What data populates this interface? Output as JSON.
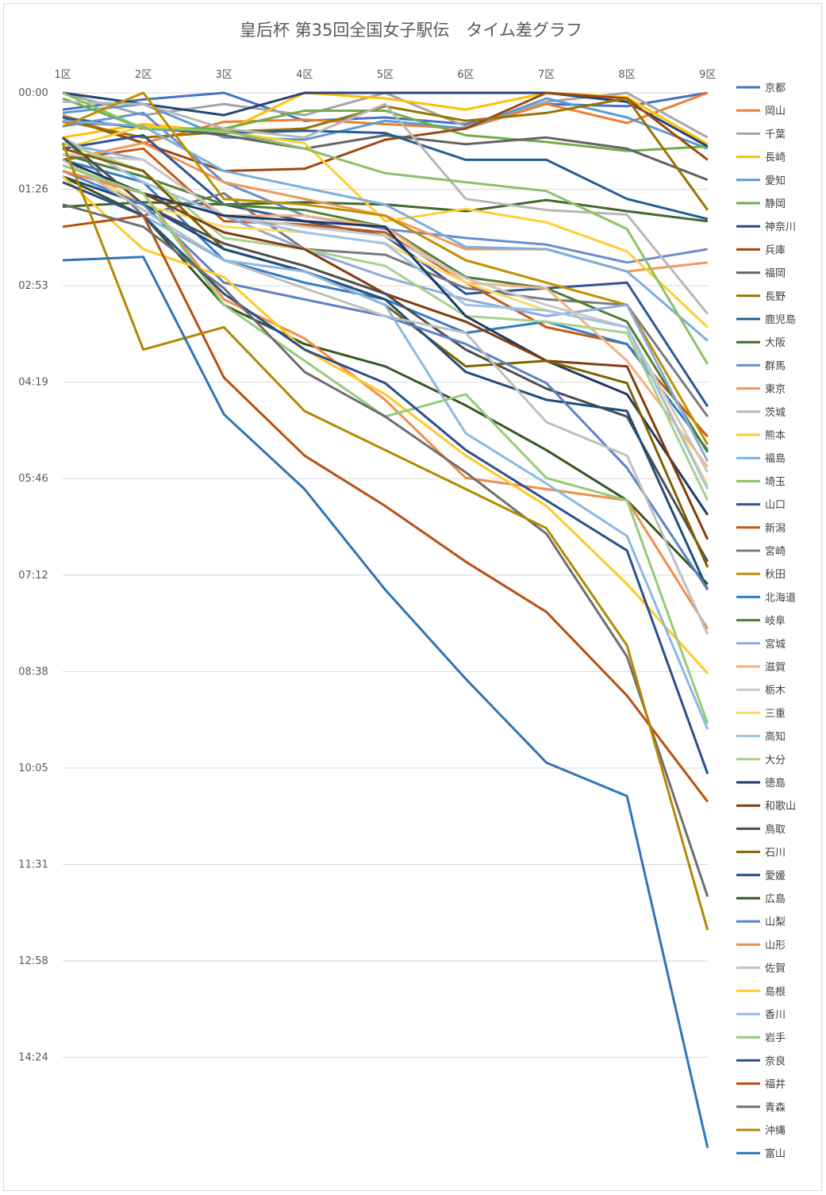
{
  "chart_data": {
    "type": "line",
    "title": "皇后杯 第35回全国女子駅伝　タイム差グラフ",
    "xlabel": "",
    "ylabel": "",
    "categories": [
      "1区",
      "2区",
      "3区",
      "4区",
      "5区",
      "6区",
      "7区",
      "8区",
      "9区"
    ],
    "y_ticks": [
      "00:00",
      "01:26",
      "02:53",
      "04:19",
      "05:46",
      "07:12",
      "08:38",
      "10:05",
      "11:31",
      "12:58",
      "14:24"
    ],
    "ylim_seconds": [
      0,
      945
    ],
    "y_inverted": true,
    "y_unit": "seconds behind leader",
    "grid": "horizontal",
    "legend_position": "right",
    "series": [
      {
        "name": "京都",
        "color": "#4472c4",
        "values": [
          15,
          6,
          0,
          25,
          22,
          28,
          10,
          12,
          0
        ]
      },
      {
        "name": "岡山",
        "color": "#ed7d31",
        "values": [
          20,
          45,
          26,
          24,
          28,
          32,
          10,
          27,
          0
        ]
      },
      {
        "name": "千葉",
        "color": "#a5a5a5",
        "values": [
          0,
          20,
          10,
          20,
          0,
          30,
          8,
          0,
          40
        ]
      },
      {
        "name": "長崎",
        "color": "#ffc000",
        "values": [
          40,
          28,
          35,
          0,
          5,
          15,
          0,
          4,
          46
        ]
      },
      {
        "name": "愛知",
        "color": "#5b9bd5",
        "values": [
          18,
          10,
          40,
          42,
          25,
          32,
          5,
          22,
          50
        ]
      },
      {
        "name": "静岡",
        "color": "#70ad47",
        "values": [
          5,
          32,
          32,
          16,
          16,
          38,
          44,
          52,
          48
        ]
      },
      {
        "name": "神奈川",
        "color": "#264478",
        "values": [
          0,
          10,
          20,
          0,
          0,
          0,
          0,
          8,
          48
        ]
      },
      {
        "name": "兵庫",
        "color": "#9e480e",
        "values": [
          22,
          45,
          70,
          68,
          42,
          32,
          0,
          5,
          60
        ]
      },
      {
        "name": "福岡",
        "color": "#636363",
        "values": [
          26,
          30,
          38,
          50,
          38,
          46,
          40,
          50,
          78
        ]
      },
      {
        "name": "長野",
        "color": "#997300",
        "values": [
          25,
          40,
          35,
          32,
          12,
          25,
          18,
          5,
          105
        ]
      },
      {
        "name": "鹿児島",
        "color": "#255e91",
        "values": [
          22,
          32,
          36,
          34,
          36,
          60,
          60,
          95,
          113
        ]
      },
      {
        "name": "大阪",
        "color": "#43682b",
        "values": [
          102,
          98,
          100,
          98,
          100,
          106,
          96,
          106,
          115
        ]
      },
      {
        "name": "群馬",
        "color": "#698ed0",
        "values": [
          30,
          18,
          80,
          110,
          122,
          130,
          136,
          152,
          140
        ]
      },
      {
        "name": "東京",
        "color": "#f1975a",
        "values": [
          60,
          45,
          80,
          95,
          110,
          140,
          140,
          160,
          152
        ]
      },
      {
        "name": "茨城",
        "color": "#b7b7b7",
        "values": [
          8,
          10,
          32,
          40,
          10,
          95,
          105,
          109,
          198
        ]
      },
      {
        "name": "熊本",
        "color": "#ffcd33",
        "values": [
          50,
          30,
          35,
          45,
          115,
          104,
          116,
          142,
          210
        ]
      },
      {
        "name": "福島",
        "color": "#7cafdd",
        "values": [
          25,
          30,
          70,
          85,
          100,
          138,
          140,
          160,
          222
        ]
      },
      {
        "name": "埼玉",
        "color": "#8cc168",
        "values": [
          0,
          32,
          34,
          50,
          72,
          80,
          88,
          122,
          243
        ]
      },
      {
        "name": "山口",
        "color": "#2e5597",
        "values": [
          50,
          38,
          100,
          115,
          128,
          180,
          175,
          170,
          281
        ]
      },
      {
        "name": "新潟",
        "color": "#c55a11",
        "values": [
          60,
          50,
          115,
          118,
          125,
          170,
          210,
          225,
          308
        ]
      },
      {
        "name": "宮崎",
        "color": "#7b7b7b",
        "values": [
          40,
          110,
          90,
          140,
          145,
          175,
          185,
          190,
          290
        ]
      },
      {
        "name": "秋田",
        "color": "#bf9000",
        "values": [
          30,
          0,
          95,
          100,
          110,
          150,
          170,
          190,
          315
        ]
      },
      {
        "name": "北海道",
        "color": "#327dc2",
        "values": [
          60,
          80,
          150,
          170,
          185,
          215,
          205,
          225,
          320
        ]
      },
      {
        "name": "岐阜",
        "color": "#4f7f36",
        "values": [
          55,
          75,
          100,
          105,
          120,
          165,
          175,
          205,
          322
        ]
      },
      {
        "name": "宮城",
        "color": "#8faadc",
        "values": [
          45,
          60,
          110,
          140,
          165,
          185,
          200,
          190,
          330
        ]
      },
      {
        "name": "滋賀",
        "color": "#f4b183",
        "values": [
          55,
          60,
          110,
          110,
          120,
          170,
          175,
          240,
          335
        ]
      },
      {
        "name": "栃木",
        "color": "#c9c9c9",
        "values": [
          55,
          60,
          110,
          120,
          128,
          166,
          190,
          210,
          340
        ]
      },
      {
        "name": "三重",
        "color": "#ffd966",
        "values": [
          60,
          100,
          120,
          125,
          135,
          170,
          195,
          210,
          352
        ]
      },
      {
        "name": "高知",
        "color": "#9dc3e6",
        "values": [
          40,
          80,
          110,
          125,
          135,
          190,
          195,
          210,
          355
        ]
      },
      {
        "name": "大分",
        "color": "#a9d18e",
        "values": [
          45,
          70,
          130,
          140,
          155,
          200,
          205,
          215,
          365
        ]
      },
      {
        "name": "徳島",
        "color": "#1f3864",
        "values": [
          60,
          90,
          110,
          115,
          120,
          200,
          240,
          270,
          378
        ]
      },
      {
        "name": "和歌山",
        "color": "#843c0c",
        "values": [
          70,
          90,
          125,
          140,
          180,
          205,
          240,
          245,
          400
        ]
      },
      {
        "name": "鳥取",
        "color": "#4d4d4d",
        "values": [
          40,
          100,
          135,
          155,
          180,
          230,
          265,
          290,
          420
        ]
      },
      {
        "name": "石川",
        "color": "#7f6000",
        "values": [
          50,
          70,
          140,
          160,
          190,
          245,
          240,
          260,
          425
        ]
      },
      {
        "name": "愛媛",
        "color": "#1f4e79",
        "values": [
          75,
          100,
          140,
          160,
          185,
          250,
          275,
          285,
          445
        ]
      },
      {
        "name": "広島",
        "color": "#375623",
        "values": [
          75,
          110,
          190,
          225,
          245,
          280,
          320,
          365,
          440
        ]
      },
      {
        "name": "山梨",
        "color": "#5b82c8",
        "values": [
          70,
          100,
          170,
          185,
          200,
          225,
          260,
          336,
          445
        ]
      },
      {
        "name": "山形",
        "color": "#f08d4a",
        "values": [
          70,
          90,
          185,
          220,
          275,
          345,
          355,
          365,
          480
        ]
      },
      {
        "name": "佐賀",
        "color": "#bfbfbf",
        "values": [
          60,
          105,
          150,
          175,
          200,
          215,
          295,
          325,
          485
        ]
      },
      {
        "name": "島根",
        "color": "#ffc926",
        "values": [
          75,
          140,
          165,
          230,
          270,
          325,
          370,
          440,
          520
        ]
      },
      {
        "name": "香川",
        "color": "#8bb8e3",
        "values": [
          80,
          110,
          150,
          160,
          190,
          305,
          350,
          397,
          570
        ]
      },
      {
        "name": "岩手",
        "color": "#93cc77",
        "values": [
          65,
          90,
          190,
          240,
          290,
          270,
          345,
          365,
          565
        ]
      },
      {
        "name": "奈良",
        "color": "#2a4f8c",
        "values": [
          80,
          110,
          180,
          230,
          260,
          320,
          365,
          410,
          610
        ]
      },
      {
        "name": "福井",
        "color": "#b8500f",
        "values": [
          120,
          110,
          255,
          325,
          370,
          420,
          465,
          540,
          635
        ]
      },
      {
        "name": "青森",
        "color": "#6e6e6e",
        "values": [
          100,
          120,
          175,
          250,
          290,
          340,
          395,
          505,
          720
        ]
      },
      {
        "name": "沖縄",
        "color": "#b38900",
        "values": [
          45,
          230,
          210,
          285,
          320,
          355,
          390,
          495,
          750
        ]
      },
      {
        "name": "富山",
        "color": "#2e75b6",
        "values": [
          150,
          147,
          288,
          355,
          445,
          525,
          600,
          630,
          945
        ]
      }
    ]
  }
}
